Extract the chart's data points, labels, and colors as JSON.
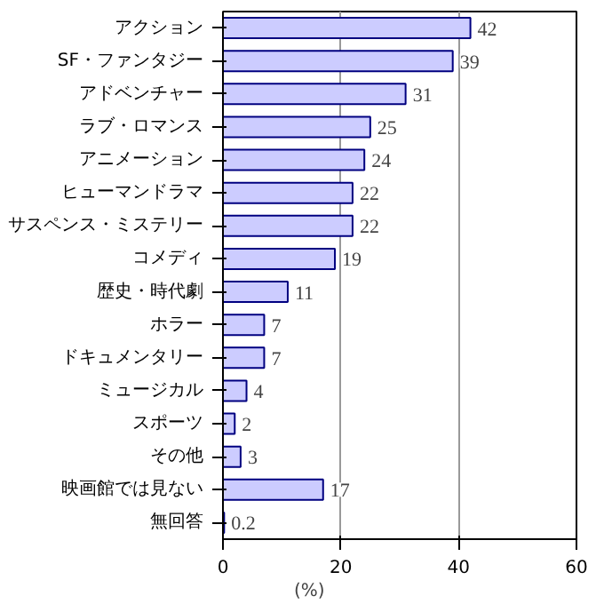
{
  "chart_data": {
    "type": "bar",
    "orientation": "horizontal",
    "xlabel": "(%)",
    "categories": [
      "アクション",
      "SF・ファンタジー",
      "アドベンチャー",
      "ラブ・ロマンス",
      "アニメーション",
      "ヒューマンドラマ",
      "サスペンス・ミステリー",
      "コメディ",
      "歴史・時代劇",
      "ホラー",
      "ドキュメンタリー",
      "ミュージカル",
      "スポーツ",
      "その他",
      "映画館では見ない",
      "無回答"
    ],
    "values": [
      42,
      39,
      31,
      25,
      24,
      22,
      22,
      19,
      11,
      7,
      7,
      4,
      2,
      3,
      17,
      0.2
    ],
    "color": "#ccccff",
    "data_labels": true,
    "xlim": [
      0,
      60
    ],
    "xticks": [
      0,
      20,
      40,
      60
    ],
    "grid": "x"
  }
}
